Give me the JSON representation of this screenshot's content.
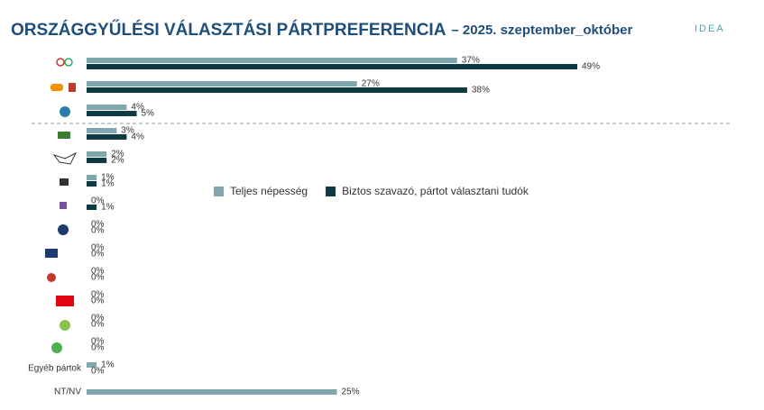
{
  "brand": "IDEA",
  "chart_data": {
    "type": "bar",
    "orientation": "horizontal",
    "title": "ORSZÁGGYŰLÉSI VÁLASZTÁSI PÁRTPREFERENCIA",
    "subtitle": "– 2025. szeptember_október",
    "categories": [
      null,
      null,
      null,
      null,
      null,
      null,
      null,
      null,
      null,
      null,
      null,
      null,
      null,
      "Egyéb pártok",
      "NT/NV"
    ],
    "series": [
      {
        "name": "Teljes népesség",
        "color": "#7fa7ae",
        "values": [
          37,
          27,
          4,
          3,
          2,
          1,
          0,
          0,
          0,
          0,
          0,
          0,
          0,
          1,
          25
        ],
        "value_labels": [
          "37%",
          "27%",
          "4%",
          "3%",
          "2%",
          "1%",
          "0%",
          "0%",
          "0%",
          "0%",
          "0%",
          "0%",
          "0%",
          "1%",
          "25%"
        ]
      },
      {
        "name": "Biztos szavazó, pártot választani tudók",
        "color": "#0e3a44",
        "values": [
          49,
          38,
          5,
          4,
          2,
          1,
          1,
          0,
          0,
          0,
          0,
          0,
          0,
          0,
          null
        ],
        "value_labels": [
          "49%",
          "38%",
          "5%",
          "4%",
          "2%",
          "1%",
          "1%",
          "0%",
          "0%",
          "0%",
          "0%",
          "0%",
          "0%",
          "0%",
          null
        ]
      }
    ]
  }
}
